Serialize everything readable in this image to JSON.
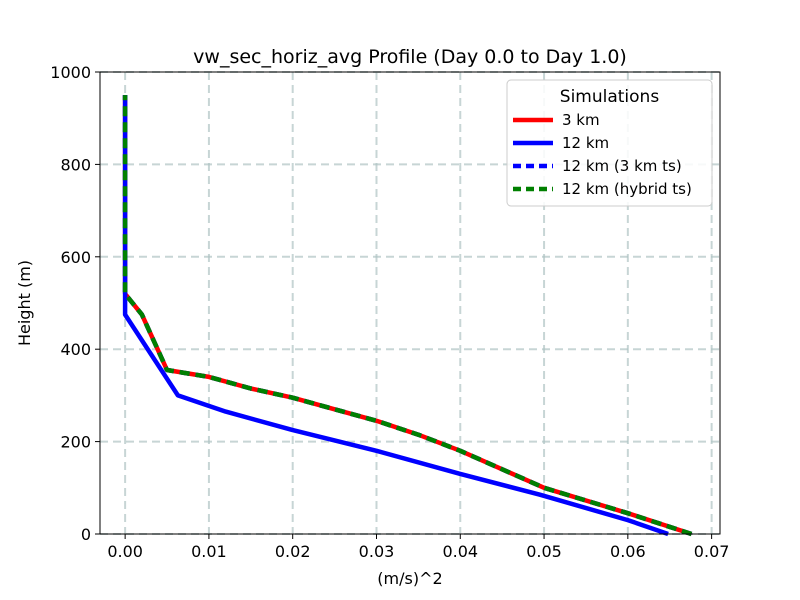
{
  "chart_data": {
    "type": "line",
    "title": "vw_sec_horiz_avg Profile (Day 0.0 to Day 1.0)",
    "xlabel": "(m/s)^2",
    "ylabel": "Height (m)",
    "xlim": [
      -0.003,
      0.071
    ],
    "ylim": [
      0,
      1000
    ],
    "xticks": [
      0.0,
      0.01,
      0.02,
      0.03,
      0.04,
      0.05,
      0.06,
      0.07
    ],
    "xtick_labels": [
      "0.00",
      "0.01",
      "0.02",
      "0.03",
      "0.04",
      "0.05",
      "0.06",
      "0.07"
    ],
    "yticks": [
      0,
      200,
      400,
      600,
      800,
      1000
    ],
    "ytick_labels": [
      "0",
      "200",
      "400",
      "600",
      "800",
      "1000"
    ],
    "grid": true,
    "legend": {
      "title": "Simulations",
      "location": "upper right"
    },
    "series": [
      {
        "name": "3 km",
        "color": "#ff0000",
        "style": "solid",
        "points": [
          [
            0.0676,
            0
          ],
          [
            0.06,
            45
          ],
          [
            0.05,
            100
          ],
          [
            0.045,
            140
          ],
          [
            0.04,
            180
          ],
          [
            0.035,
            215
          ],
          [
            0.03,
            245
          ],
          [
            0.025,
            270
          ],
          [
            0.02,
            295
          ],
          [
            0.015,
            315
          ],
          [
            0.01,
            340
          ],
          [
            0.005,
            355
          ],
          [
            0.002,
            475
          ],
          [
            0.0,
            520
          ],
          [
            0.0,
            950
          ]
        ]
      },
      {
        "name": "12 km",
        "color": "#0000ff",
        "style": "solid",
        "points": [
          [
            0.0648,
            0
          ],
          [
            0.06,
            30
          ],
          [
            0.0495,
            85
          ],
          [
            0.04,
            130
          ],
          [
            0.03,
            180
          ],
          [
            0.02,
            225
          ],
          [
            0.012,
            265
          ],
          [
            0.0063,
            300
          ],
          [
            0.0,
            475
          ],
          [
            0.0,
            950
          ]
        ]
      },
      {
        "name": "12 km (3 km ts)",
        "color": "#0000ff",
        "style": "dashed",
        "points": [
          [
            0.0676,
            0
          ],
          [
            0.06,
            45
          ],
          [
            0.05,
            100
          ],
          [
            0.045,
            140
          ],
          [
            0.04,
            180
          ],
          [
            0.035,
            215
          ],
          [
            0.03,
            245
          ],
          [
            0.025,
            270
          ],
          [
            0.02,
            295
          ],
          [
            0.015,
            315
          ],
          [
            0.01,
            340
          ],
          [
            0.005,
            355
          ],
          [
            0.002,
            475
          ],
          [
            0.0,
            520
          ],
          [
            0.0,
            950
          ]
        ]
      },
      {
        "name": "12 km (hybrid ts)",
        "color": "#008000",
        "style": "dashed",
        "points": [
          [
            0.0676,
            0
          ],
          [
            0.06,
            45
          ],
          [
            0.05,
            100
          ],
          [
            0.045,
            140
          ],
          [
            0.04,
            180
          ],
          [
            0.035,
            215
          ],
          [
            0.03,
            245
          ],
          [
            0.025,
            270
          ],
          [
            0.02,
            295
          ],
          [
            0.015,
            315
          ],
          [
            0.01,
            340
          ],
          [
            0.005,
            355
          ],
          [
            0.002,
            475
          ],
          [
            0.0,
            520
          ],
          [
            0.0,
            950
          ]
        ]
      }
    ]
  }
}
